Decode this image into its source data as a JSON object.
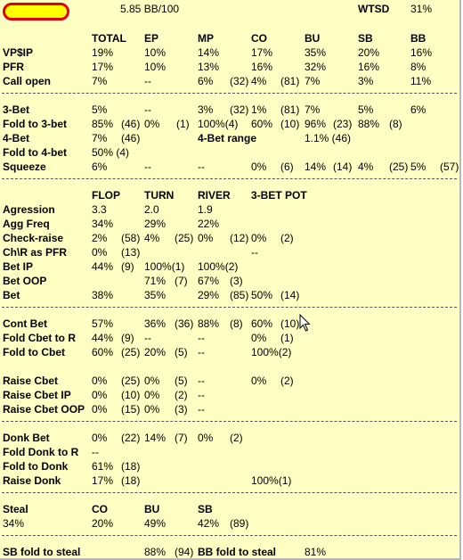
{
  "header": {
    "bb100": "5.85 BB/100",
    "wtsd_label": "WTSD",
    "wtsd_value": "31%"
  },
  "cols1": [
    "TOTAL",
    "EP",
    "MP",
    "CO",
    "BU",
    "SB",
    "BB"
  ],
  "vpip": {
    "label": "VP$IP",
    "cells": [
      "19%",
      "10%",
      "14%",
      "17%",
      "35%",
      "20%",
      "16%"
    ]
  },
  "pfr": {
    "label": "PFR",
    "cells": [
      "17%",
      "10%",
      "13%",
      "16%",
      "32%",
      "16%",
      "8%"
    ]
  },
  "call_open": {
    "label": "Call open",
    "cells": [
      "7%",
      "--",
      "6%",
      "(32)",
      "4%",
      "(81)",
      "7%",
      "3%",
      "11%"
    ]
  },
  "three_bet": {
    "label": "3-Bet",
    "cells": [
      "5%",
      "--",
      "3%",
      "(32)",
      "1%",
      "(81)",
      "7%",
      "5%",
      "6%"
    ]
  },
  "fold_to_3bet": {
    "label": "Fold to 3-bet",
    "cells": [
      "85%",
      "(46)",
      "0%",
      "(1)",
      "100%(4)",
      "60%",
      "(10)",
      "96%",
      "(23)",
      "88%",
      "(8)"
    ]
  },
  "four_bet": {
    "label": "4-Bet",
    "cells": [
      "7%",
      "(46)"
    ],
    "range_label": "4-Bet range",
    "range_value": "1.1% (46)"
  },
  "fold_to_4bet": {
    "label": "Fold to 4-bet",
    "cells": [
      "50% (4)"
    ]
  },
  "squeeze": {
    "label": "Squeeze",
    "cells": [
      "6%",
      "--",
      "--",
      "0%",
      "(6)",
      "14%",
      "(14)",
      "4%",
      "(25)",
      "5%",
      "(57)"
    ]
  },
  "cols2": [
    "FLOP",
    "TURN",
    "RIVER",
    "3-BET POT"
  ],
  "aggression": {
    "label": "Agression",
    "cells": [
      "3.3",
      "2.0",
      "1.9"
    ]
  },
  "agg_freq": {
    "label": "Agg Freq",
    "cells": [
      "34%",
      "29%",
      "22%"
    ]
  },
  "check_raise": {
    "label": "Check-raise",
    "cells": [
      "2%",
      "(58)",
      "4%",
      "(25)",
      "0%",
      "(12)",
      "0%",
      "(2)"
    ]
  },
  "chr_pfr": {
    "label": "Ch\\R as PFR",
    "cells": [
      "0%",
      "(13)",
      "--"
    ]
  },
  "bet_ip": {
    "label": "Bet IP",
    "cells": [
      "44%",
      "(9)",
      "100%(1)",
      "100%(2)"
    ]
  },
  "bet_oop": {
    "label": "Bet OOP",
    "cells": [
      "71%",
      "(7)",
      "67%",
      "(3)"
    ]
  },
  "bet": {
    "label": "Bet",
    "cells": [
      "38%",
      "35%",
      "29%",
      "(85)",
      "50%",
      "(14)"
    ]
  },
  "cont_bet": {
    "label": "Cont Bet",
    "cells": [
      "57%",
      "36%",
      "(36)",
      "88%",
      "(8)",
      "60%",
      "(10)"
    ]
  },
  "fold_cbet_r": {
    "label": "Fold Cbet to R",
    "cells": [
      "44%",
      "(9)",
      "--",
      "--",
      "0%",
      "(1)"
    ]
  },
  "fold_cbet": {
    "label": "Fold to Cbet",
    "cells": [
      "60%",
      "(25)",
      "20%",
      "(5)",
      "--",
      "100%(2)"
    ]
  },
  "raise_cbet": {
    "label": "Raise Cbet",
    "cells": [
      "0%",
      "(25)",
      "0%",
      "(5)",
      "--",
      "0%",
      "(2)"
    ]
  },
  "raise_cbet_ip": {
    "label": "Raise Cbet IP",
    "cells": [
      "0%",
      "(10)",
      "0%",
      "(2)",
      "--"
    ]
  },
  "raise_cbet_oop": {
    "label": "Raise Cbet OOP",
    "cells": [
      "0%",
      "(15)",
      "0%",
      "(3)",
      "--"
    ]
  },
  "donk_bet": {
    "label": "Donk Bet",
    "cells": [
      "0%",
      "(22)",
      "14%",
      "(7)",
      "0%",
      "(2)"
    ]
  },
  "fold_donk_r": {
    "label": "Fold Donk to R",
    "cells": [
      "--"
    ]
  },
  "fold_donk": {
    "label": "Fold to Donk",
    "cells": [
      "61%",
      "(18)"
    ]
  },
  "raise_donk": {
    "label": "Raise Donk",
    "cells": [
      "17%",
      "(18)",
      "100%(1)"
    ]
  },
  "steal": {
    "header": [
      "Steal",
      "CO",
      "BU",
      "SB"
    ],
    "cells": [
      "34%",
      "20%",
      "49%",
      "42%",
      "(89)"
    ]
  },
  "sb_fold": {
    "label": "SB fold to steal",
    "value": "88%",
    "count": "(94)"
  },
  "bb_fold": {
    "label": "BB fold to steal",
    "value": "81%"
  }
}
